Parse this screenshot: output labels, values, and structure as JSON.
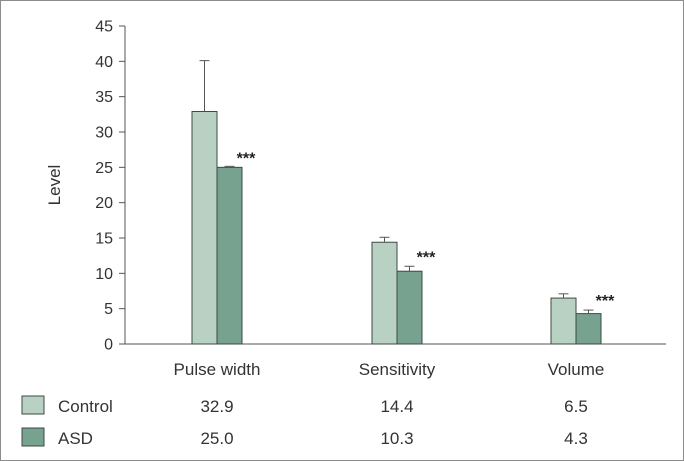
{
  "chart_data": {
    "type": "bar",
    "ylabel": "Level",
    "ylim": [
      0,
      45
    ],
    "yticks": [
      0,
      5,
      10,
      15,
      20,
      25,
      30,
      35,
      40,
      45
    ],
    "categories": [
      "Pulse width",
      "Sensitivity",
      "Volume"
    ],
    "series": [
      {
        "name": "Control",
        "values": [
          32.9,
          14.4,
          6.5
        ],
        "errors": [
          7.2,
          0.7,
          0.6
        ],
        "value_labels": [
          "32.9",
          "14.4",
          "6.5"
        ],
        "color": "#b9d1c3"
      },
      {
        "name": "ASD",
        "values": [
          25.0,
          10.3,
          4.3
        ],
        "errors": [
          0.0,
          0.7,
          0.5
        ],
        "value_labels": [
          "25.0",
          "10.3",
          "4.3"
        ],
        "color": "#78a290"
      }
    ],
    "significance": [
      "***",
      "***",
      "***"
    ],
    "grid": false,
    "legend": "bottom-table"
  }
}
